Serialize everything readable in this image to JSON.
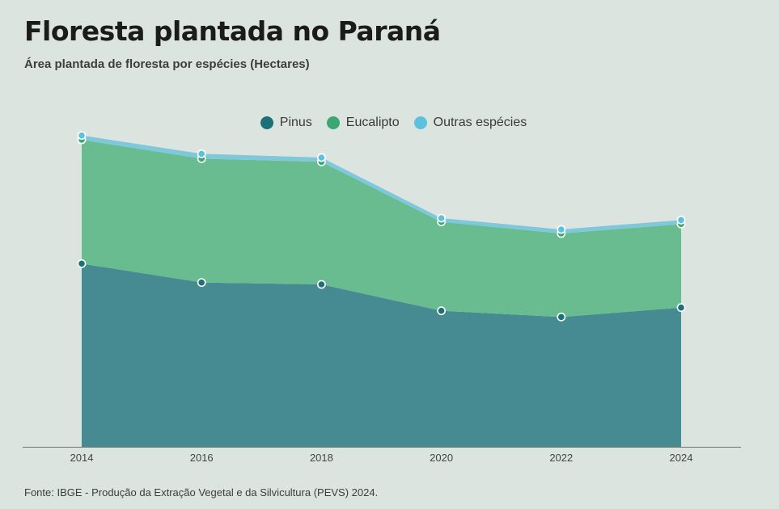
{
  "title": "Floresta plantada no Paraná",
  "subtitle": "Área plantada de floresta por espécies (Hectares)",
  "source": "Fonte: IBGE - Produção da Extração Vegetal e da Silvicultura (PEVS) 2024.",
  "colors": {
    "background": "#dce4e0",
    "pinus": "#1d6f78",
    "eucalipto": "#3aa870",
    "outras": "#5ec0df"
  },
  "chart_data": {
    "type": "area",
    "stacked": true,
    "x": [
      "2014",
      "2016",
      "2018",
      "2020",
      "2022",
      "2024"
    ],
    "series": [
      {
        "name": "Pinus",
        "color": "#1d6f78",
        "values": [
          680000,
          610000,
          603000,
          505000,
          482000,
          517000
        ]
      },
      {
        "name": "Eucalipto",
        "color": "#3aa870",
        "values": [
          460000,
          460000,
          455000,
          330000,
          310000,
          310000
        ]
      },
      {
        "name": "Outras espécies",
        "color": "#5ec0df",
        "values": [
          16000,
          18000,
          16000,
          14000,
          15000,
          15000
        ]
      }
    ],
    "ylim": [
      0,
      1200000
    ],
    "grid": false,
    "legend_position": "top-center",
    "xlabel": "",
    "ylabel": ""
  }
}
